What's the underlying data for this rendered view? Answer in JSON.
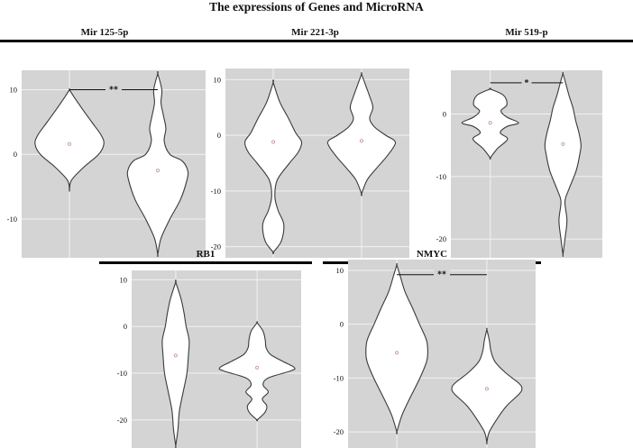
{
  "figure": {
    "title": "The expressions of Genes and MicroRNA"
  },
  "colors": {
    "plot_bg": "#d4d4d4",
    "grid": "#f2f2f2",
    "violin_fill": "#ffffff",
    "violin_line": "#3a3a3a",
    "bar": "#000000",
    "median": "#c8a0a0"
  },
  "chart_data": [
    {
      "type": "violin",
      "title": "Mir 125-5p",
      "ylim": [
        -16,
        13
      ],
      "yticks": [
        10,
        0,
        -10
      ],
      "violins": [
        {
          "median": 1.6,
          "profile": [
            [
              -5.5,
              0
            ],
            [
              -4,
              0.05
            ],
            [
              -2,
              0.35
            ],
            [
              0,
              0.72
            ],
            [
              1.6,
              0.85
            ],
            [
              3,
              0.78
            ],
            [
              5,
              0.55
            ],
            [
              7,
              0.32
            ],
            [
              9,
              0.1
            ],
            [
              10,
              0
            ]
          ]
        },
        {
          "median": -2.5,
          "profile": [
            [
              -15.5,
              0
            ],
            [
              -13,
              0.08
            ],
            [
              -10,
              0.3
            ],
            [
              -7,
              0.56
            ],
            [
              -4,
              0.72
            ],
            [
              -2.5,
              0.74
            ],
            [
              -1,
              0.6
            ],
            [
              0,
              0.3
            ],
            [
              2,
              0.16
            ],
            [
              4,
              0.2
            ],
            [
              6,
              0.14
            ],
            [
              8,
              0.08
            ],
            [
              10,
              0.1
            ],
            [
              12.5,
              0
            ]
          ]
        }
      ],
      "annotation": {
        "text": "**",
        "between": [
          0,
          1
        ],
        "y": 10
      }
    },
    {
      "type": "violin",
      "title": "Mir 221-3p",
      "ylim": [
        -22,
        12
      ],
      "yticks": [
        10,
        0,
        -10,
        -20
      ],
      "violins": [
        {
          "median": -1.2,
          "profile": [
            [
              -21,
              0
            ],
            [
              -19,
              0.2
            ],
            [
              -16,
              0.26
            ],
            [
              -13.5,
              0.12
            ],
            [
              -11,
              0.04
            ],
            [
              -8,
              0.1
            ],
            [
              -5,
              0.4
            ],
            [
              -3,
              0.62
            ],
            [
              -1.2,
              0.7
            ],
            [
              0.5,
              0.55
            ],
            [
              3,
              0.38
            ],
            [
              6,
              0.16
            ],
            [
              9.5,
              0
            ]
          ]
        },
        {
          "median": -1.0,
          "profile": [
            [
              -10.5,
              0
            ],
            [
              -8,
              0.14
            ],
            [
              -6,
              0.36
            ],
            [
              -4,
              0.6
            ],
            [
              -2,
              0.8
            ],
            [
              -1,
              0.82
            ],
            [
              0,
              0.6
            ],
            [
              1.5,
              0.32
            ],
            [
              3,
              0.2
            ],
            [
              5,
              0.28
            ],
            [
              7,
              0.2
            ],
            [
              9,
              0.1
            ],
            [
              11,
              0
            ]
          ]
        }
      ]
    },
    {
      "type": "violin",
      "title": "Mir 519-p",
      "ylim": [
        -23,
        7
      ],
      "yticks": [
        0,
        -10,
        -20
      ],
      "violins": [
        {
          "median": -1.4,
          "profile": [
            [
              -7,
              0
            ],
            [
              -5.5,
              0.22
            ],
            [
              -4,
              0.52
            ],
            [
              -3,
              0.3
            ],
            [
              -2,
              0.5
            ],
            [
              -1.4,
              0.85
            ],
            [
              -0.5,
              0.5
            ],
            [
              0.5,
              0.32
            ],
            [
              1.5,
              0.5
            ],
            [
              3,
              0.4
            ],
            [
              4,
              0
            ]
          ]
        },
        {
          "median": -4.8,
          "profile": [
            [
              -22.5,
              0
            ],
            [
              -20,
              0.06
            ],
            [
              -17,
              0.12
            ],
            [
              -14,
              0.06
            ],
            [
              -12,
              0.18
            ],
            [
              -9,
              0.4
            ],
            [
              -6,
              0.52
            ],
            [
              -4.8,
              0.54
            ],
            [
              -3,
              0.48
            ],
            [
              -1,
              0.38
            ],
            [
              1,
              0.3
            ],
            [
              3,
              0.18
            ],
            [
              5,
              0.08
            ],
            [
              6.5,
              0
            ]
          ]
        }
      ],
      "annotation": {
        "text": "*",
        "between": [
          0,
          1
        ],
        "y": 5
      }
    },
    {
      "type": "violin",
      "title": "RB1",
      "ylim": [
        -26,
        12
      ],
      "yticks": [
        10,
        0,
        -10,
        -20
      ],
      "violins": [
        {
          "median": -6.2,
          "profile": [
            [
              -25.5,
              0
            ],
            [
              -22,
              0.06
            ],
            [
              -18,
              0.1
            ],
            [
              -14,
              0.2
            ],
            [
              -10,
              0.3
            ],
            [
              -6.2,
              0.34
            ],
            [
              -3,
              0.36
            ],
            [
              0,
              0.28
            ],
            [
              3,
              0.22
            ],
            [
              6,
              0.14
            ],
            [
              9.5,
              0
            ]
          ]
        },
        {
          "median": -8.8,
          "profile": [
            [
              -20,
              0
            ],
            [
              -18.5,
              0.2
            ],
            [
              -17,
              0.26
            ],
            [
              -15.5,
              0.14
            ],
            [
              -14,
              0.3
            ],
            [
              -12.5,
              0.16
            ],
            [
              -11,
              0.3
            ],
            [
              -9.5,
              0.9
            ],
            [
              -8.8,
              1.0
            ],
            [
              -7.5,
              0.7
            ],
            [
              -6,
              0.36
            ],
            [
              -4.5,
              0.24
            ],
            [
              -3,
              0.22
            ],
            [
              -1,
              0.16
            ],
            [
              0.8,
              0
            ]
          ]
        }
      ]
    },
    {
      "type": "violin",
      "title": "NMYC",
      "ylim": [
        -23,
        12
      ],
      "yticks": [
        10,
        0,
        -10,
        -20
      ],
      "violins": [
        {
          "median": -5.3,
          "profile": [
            [
              -20,
              0
            ],
            [
              -17,
              0.12
            ],
            [
              -14,
              0.3
            ],
            [
              -10,
              0.56
            ],
            [
              -7,
              0.72
            ],
            [
              -5.3,
              0.75
            ],
            [
              -3,
              0.72
            ],
            [
              0,
              0.55
            ],
            [
              3,
              0.38
            ],
            [
              6,
              0.2
            ],
            [
              9,
              0.08
            ],
            [
              11,
              0
            ]
          ]
        },
        {
          "median": -12.0,
          "profile": [
            [
              -22,
              0
            ],
            [
              -20,
              0.06
            ],
            [
              -17,
              0.3
            ],
            [
              -15,
              0.5
            ],
            [
              -13,
              0.78
            ],
            [
              -12,
              0.85
            ],
            [
              -11,
              0.78
            ],
            [
              -9,
              0.45
            ],
            [
              -7,
              0.2
            ],
            [
              -5,
              0.1
            ],
            [
              -3,
              0.06
            ],
            [
              -1,
              0
            ]
          ]
        }
      ],
      "annotation": {
        "text": "**",
        "between": [
          0,
          1
        ],
        "y": 9.2
      }
    }
  ]
}
